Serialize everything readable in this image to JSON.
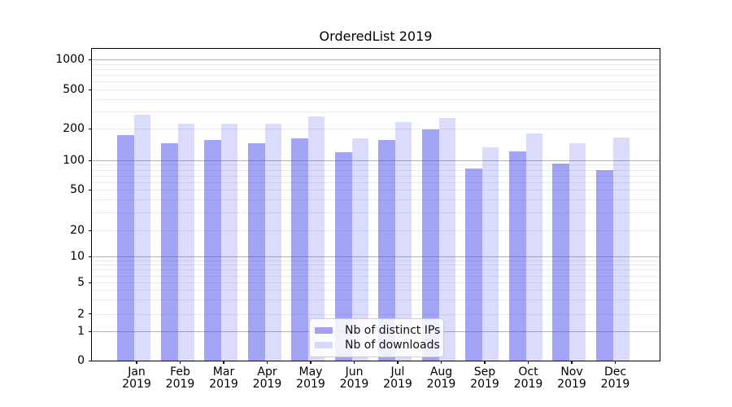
{
  "title": "OrderedList 2019",
  "colors": {
    "bar_distinct_ips": "rgba(62,62,235,0.47)",
    "bar_downloads": "rgba(62,62,235,0.19)",
    "swatch_distinct_ips": "#a2a2f0",
    "swatch_downloads": "#d8d8f8",
    "grid_major": "#b3b3b3",
    "grid_minor": "#eaeaea",
    "axis": "#000000"
  },
  "y_axis": {
    "tick_labels": [
      "0",
      "1",
      "2",
      "5",
      "10",
      "20",
      "50",
      "100",
      "200",
      "500",
      "1000"
    ]
  },
  "x_axis": {
    "tick_labels": [
      [
        "Jan",
        "2019"
      ],
      [
        "Feb",
        "2019"
      ],
      [
        "Mar",
        "2019"
      ],
      [
        "Apr",
        "2019"
      ],
      [
        "May",
        "2019"
      ],
      [
        "Jun",
        "2019"
      ],
      [
        "Jul",
        "2019"
      ],
      [
        "Aug",
        "2019"
      ],
      [
        "Sep",
        "2019"
      ],
      [
        "Oct",
        "2019"
      ],
      [
        "Nov",
        "2019"
      ],
      [
        "Dec",
        "2019"
      ]
    ]
  },
  "legend": {
    "items": [
      "Nb of distinct IPs",
      "Nb of downloads"
    ]
  },
  "chart_data": {
    "type": "bar",
    "title": "OrderedList 2019",
    "categories": [
      "Jan 2019",
      "Feb 2019",
      "Mar 2019",
      "Apr 2019",
      "May 2019",
      "Jun 2019",
      "Jul 2019",
      "Aug 2019",
      "Sep 2019",
      "Oct 2019",
      "Nov 2019",
      "Dec 2019"
    ],
    "series": [
      {
        "name": "Nb of distinct IPs",
        "values": [
          175,
          146,
          157,
          146,
          162,
          120,
          157,
          197,
          83,
          121,
          92,
          80
        ]
      },
      {
        "name": "Nb of downloads",
        "values": [
          277,
          224,
          225,
          224,
          267,
          162,
          233,
          255,
          133,
          180,
          146,
          164
        ]
      }
    ],
    "xlabel": "",
    "ylabel": "",
    "yscale": "symlog",
    "yticks": [
      0,
      1,
      2,
      5,
      10,
      20,
      50,
      100,
      200,
      500,
      1000
    ],
    "ylim": [
      0,
      1500
    ],
    "grid": "horizontal, major (decades) + minor (2-9 per decade)",
    "legend_position": "lower center"
  }
}
